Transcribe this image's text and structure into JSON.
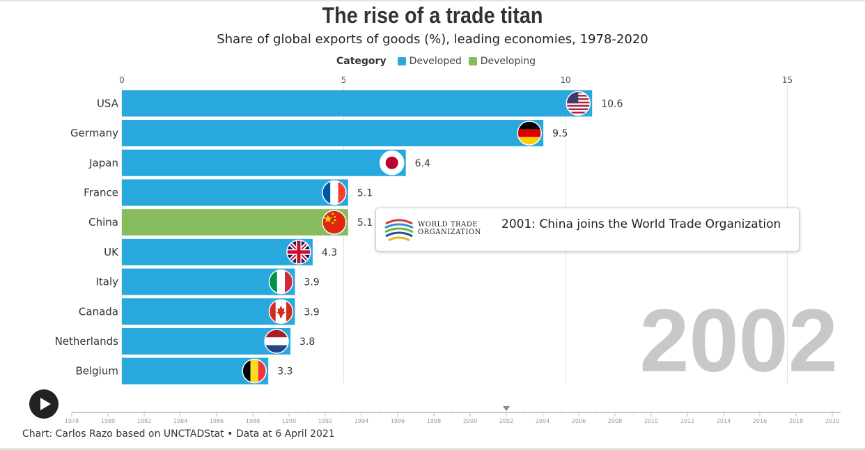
{
  "title": "The rise of a trade titan",
  "subtitle": "Share of global exports of goods (%), leading economies, 1978-2020",
  "legend": {
    "title": "Category",
    "items": [
      {
        "label": "Developed",
        "color": "#29a8dd"
      },
      {
        "label": "Developing",
        "color": "#88bb5c"
      }
    ]
  },
  "chart_data": {
    "type": "bar",
    "orientation": "horizontal",
    "title": "The rise of a trade titan",
    "subtitle": "Share of global exports of goods (%), leading economies, 1978-2020",
    "year": "2002",
    "categories": [
      "USA",
      "Germany",
      "Japan",
      "France",
      "China",
      "UK",
      "Italy",
      "Canada",
      "Netherlands",
      "Belgium"
    ],
    "values": [
      10.6,
      9.5,
      6.4,
      5.1,
      5.1,
      4.3,
      3.9,
      3.9,
      3.8,
      3.3
    ],
    "value_labels": [
      "10.6",
      "9.5",
      "6.4",
      "5.1",
      "5.1",
      "4.3",
      "3.9",
      "3.9",
      "3.8",
      "3.3"
    ],
    "category_group": [
      "Developed",
      "Developed",
      "Developed",
      "Developed",
      "Developing",
      "Developed",
      "Developed",
      "Developed",
      "Developed",
      "Developed"
    ],
    "flag_icons": [
      "us-flag-icon",
      "germany-flag-icon",
      "japan-flag-icon",
      "france-flag-icon",
      "china-flag-icon",
      "uk-flag-icon",
      "italy-flag-icon",
      "canada-flag-icon",
      "netherlands-flag-icon",
      "belgium-flag-icon"
    ],
    "xlim": [
      0,
      15
    ],
    "xticks": [
      "0",
      "5",
      "10",
      "15"
    ],
    "grid": true,
    "legend_position": "top-center",
    "colors": {
      "Developed": "#29a8dd",
      "Developing": "#88bb5c"
    }
  },
  "annotation": {
    "text": "2001: China joins the World Trade Organization",
    "logo_line1": "WORLD TRADE",
    "logo_line2": "ORGANIZATION",
    "logo_icon": "wto-logo-icon"
  },
  "timeline": {
    "years": [
      "1978",
      "1980",
      "1982",
      "1984",
      "1986",
      "1988",
      "1990",
      "1992",
      "1994",
      "1996",
      "1998",
      "2000",
      "2002",
      "2004",
      "2006",
      "2008",
      "2010",
      "2012",
      "2014",
      "2016",
      "2018",
      "2020"
    ],
    "current": "2002",
    "play_icon": "play-icon"
  },
  "source": "Chart: Carlos Razo based on UNCTADStat • Data at 6 April 2021"
}
